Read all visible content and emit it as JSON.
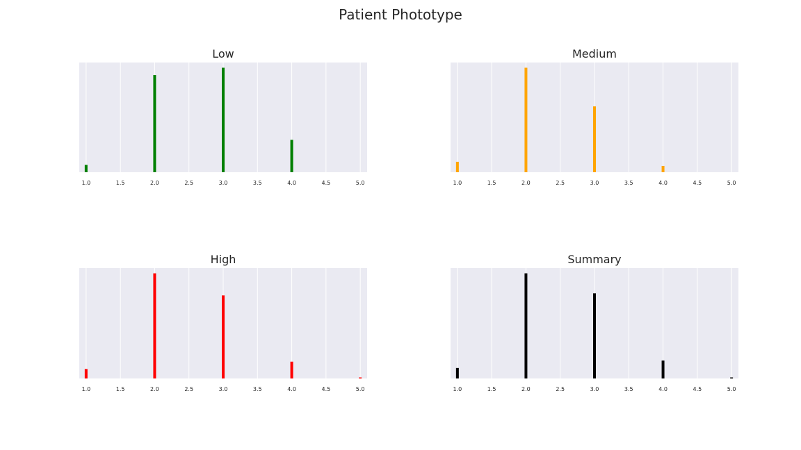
{
  "figure": {
    "suptitle": "Patient Phototype"
  },
  "style": {
    "panel_background": "#eaeaf2",
    "grid_color": "#ffffff",
    "text_color": "#262626"
  },
  "chart_data": [
    {
      "type": "bar",
      "title": "Low",
      "color": "#008000",
      "x": [
        1.0,
        2.0,
        3.0,
        4.0
      ],
      "values": [
        0.07,
        0.93,
        1.0,
        0.31
      ],
      "xlim": [
        0.9,
        5.1
      ],
      "ylim": [
        0,
        1.05
      ],
      "xticks": [
        "1.0",
        "1.5",
        "2.0",
        "2.5",
        "3.0",
        "3.5",
        "4.0",
        "4.5",
        "5.0"
      ],
      "yticks_visible": false,
      "grid": "vertical"
    },
    {
      "type": "bar",
      "title": "Medium",
      "color": "#ffa500",
      "x": [
        1.0,
        2.0,
        3.0,
        4.0
      ],
      "values": [
        0.1,
        1.0,
        0.63,
        0.06
      ],
      "xlim": [
        0.9,
        5.1
      ],
      "ylim": [
        0,
        1.05
      ],
      "xticks": [
        "1.0",
        "1.5",
        "2.0",
        "2.5",
        "3.0",
        "3.5",
        "4.0",
        "4.5",
        "5.0"
      ],
      "yticks_visible": false,
      "grid": "vertical"
    },
    {
      "type": "bar",
      "title": "High",
      "color": "#ff0000",
      "x": [
        1.0,
        2.0,
        3.0,
        4.0,
        5.0
      ],
      "values": [
        0.09,
        1.0,
        0.79,
        0.16,
        0.01
      ],
      "xlim": [
        0.9,
        5.1
      ],
      "ylim": [
        0,
        1.05
      ],
      "xticks": [
        "1.0",
        "1.5",
        "2.0",
        "2.5",
        "3.0",
        "3.5",
        "4.0",
        "4.5",
        "5.0"
      ],
      "yticks_visible": false,
      "grid": "vertical"
    },
    {
      "type": "bar",
      "title": "Summary",
      "color": "#000000",
      "x": [
        1.0,
        2.0,
        3.0,
        4.0,
        5.0
      ],
      "values": [
        0.1,
        1.0,
        0.81,
        0.17,
        0.01
      ],
      "xlim": [
        0.9,
        5.1
      ],
      "ylim": [
        0,
        1.05
      ],
      "xticks": [
        "1.0",
        "1.5",
        "2.0",
        "2.5",
        "3.0",
        "3.5",
        "4.0",
        "4.5",
        "5.0"
      ],
      "yticks_visible": false,
      "grid": "vertical"
    }
  ]
}
